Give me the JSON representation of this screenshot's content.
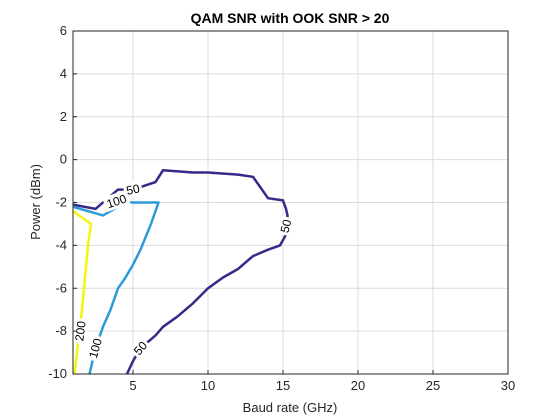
{
  "chart_data": {
    "type": "line",
    "title": "QAM SNR with OOK SNR > 20",
    "xlabel": "Baud rate (GHz)",
    "ylabel": "Power (dBm)",
    "xlim": [
      1,
      30
    ],
    "ylim": [
      -10,
      6
    ],
    "xticks": [
      5,
      10,
      15,
      20,
      25,
      30
    ],
    "yticks": [
      -10,
      -8,
      -6,
      -4,
      -2,
      0,
      2,
      4,
      6
    ],
    "xtick_labels": [
      "5",
      "10",
      "15",
      "20",
      "25",
      "30"
    ],
    "ytick_labels": [
      "-10",
      "-8",
      "-6",
      "-4",
      "-2",
      "0",
      "2",
      "4",
      "6"
    ],
    "grid": true,
    "series": [
      {
        "level": "50",
        "color": "#352a87",
        "x": [
          1.0,
          2.5,
          4.0,
          5.0,
          6.5,
          7.0,
          9.0,
          10.0,
          12.0,
          13.0,
          14.0,
          15.0,
          15.2,
          15.3,
          15.2,
          14.8,
          14.0,
          13.0,
          12.0,
          11.0,
          10.0,
          9.0,
          8.0,
          7.0,
          6.5,
          5.5,
          5.0,
          4.6
        ],
        "y": [
          -2.1,
          -2.3,
          -1.4,
          -1.4,
          -1.05,
          -0.5,
          -0.6,
          -0.6,
          -0.7,
          -0.8,
          -1.8,
          -1.9,
          -2.3,
          -2.6,
          -3.5,
          -4.0,
          -4.2,
          -4.5,
          -5.1,
          -5.5,
          -6.0,
          -6.7,
          -7.3,
          -7.8,
          -8.2,
          -8.8,
          -9.4,
          -10.0
        ],
        "labels": [
          {
            "text": "50",
            "x": 5.0,
            "y": -1.4
          },
          {
            "text": "50",
            "x": 15.2,
            "y": -3.1
          },
          {
            "text": "50",
            "x": 5.5,
            "y": -8.8
          }
        ]
      },
      {
        "level": "100",
        "color": "#2c9bd8",
        "x": [
          1.0,
          3.0,
          4.5,
          5.5,
          6.7,
          6.2,
          5.5,
          5.0,
          4.5,
          4.0,
          3.5,
          3.0,
          2.5,
          2.1
        ],
        "y": [
          -2.2,
          -2.6,
          -2.0,
          -2.0,
          -2.0,
          -3.0,
          -4.2,
          -4.9,
          -5.5,
          -6.0,
          -7.0,
          -7.8,
          -8.8,
          -10.0
        ],
        "labels": [
          {
            "text": "100",
            "x": 3.9,
            "y": -1.95
          },
          {
            "text": "100",
            "x": 2.5,
            "y": -8.8
          }
        ]
      },
      {
        "level": "200",
        "color": "#f5f50f",
        "x": [
          1.0,
          1.8,
          2.2,
          2.0,
          1.8,
          1.6,
          1.3,
          1.1
        ],
        "y": [
          -2.4,
          -2.8,
          -3.0,
          -4.0,
          -5.5,
          -7.0,
          -8.8,
          -10.0
        ],
        "labels": [
          {
            "text": "200",
            "x": 1.5,
            "y": -8.0
          }
        ]
      }
    ]
  }
}
